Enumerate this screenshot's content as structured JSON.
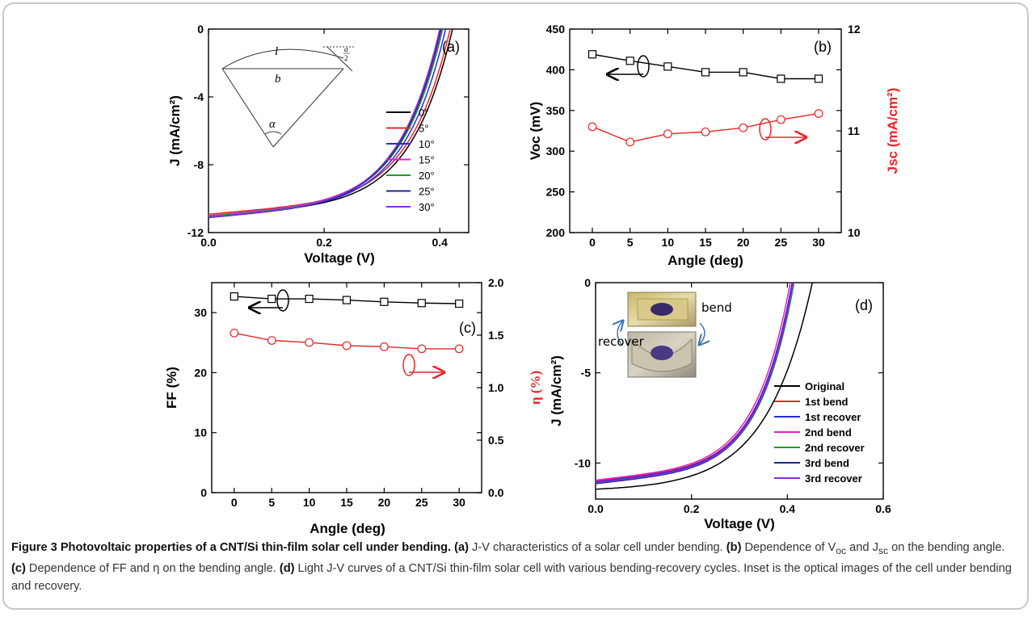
{
  "caption": {
    "label": "Figure 3",
    "title": "Photovoltaic properties of a CNT/Si thin-film solar cell under bending.",
    "a_tag": "(a)",
    "a_text": " J-V characteristics of a solar cell under bending. ",
    "b_tag": "(b)",
    "b_text": " Dependence of V",
    "b_sub1": "oc",
    "b_mid": " and J",
    "b_sub2": "sc",
    "b_end": " on the bending angle. ",
    "c_tag": "(c)",
    "c_text": " Dependence of FF and η on the bending angle. ",
    "d_tag": "(d)",
    "d_text": " Light J-V curves of a CNT/Si thin-film solar cell with various bending-recovery cycles. Inset is the optical images of the cell under bending and recovery."
  },
  "inset": {
    "l": "l",
    "b": "b",
    "alpha": "α",
    "half_alpha_num": "α",
    "half_alpha_den": "2",
    "bend": "bend",
    "recover": "recover"
  },
  "chart_data": [
    {
      "panel": "(a)",
      "type": "line",
      "xlabel": "Voltage (V)",
      "ylabel": "J (mA/cm²)",
      "xlim": [
        0.0,
        0.45
      ],
      "ylim": [
        -12,
        0
      ],
      "xticks": [
        "0.0",
        "0.2",
        "0.4"
      ],
      "yticks": [
        "0",
        "-4",
        "-8",
        "-12"
      ],
      "legend_position": "right",
      "series": [
        {
          "name": "0°",
          "color": "#000000",
          "jsc": -11.05,
          "voc": 0.422
        },
        {
          "name": "5°",
          "color": "#e8262a",
          "jsc": -10.92,
          "voc": 0.418
        },
        {
          "name": "10°",
          "color": "#2a2ad8",
          "jsc": -11.08,
          "voc": 0.41
        },
        {
          "name": "15°",
          "color": "#e020d0",
          "jsc": -11.0,
          "voc": 0.404
        },
        {
          "name": "20°",
          "color": "#1f9a2b",
          "jsc": -11.05,
          "voc": 0.405
        },
        {
          "name": "25°",
          "color": "#1e2a8c",
          "jsc": -11.12,
          "voc": 0.402
        },
        {
          "name": "30°",
          "color": "#8a2be2",
          "jsc": -11.1,
          "voc": 0.4
        }
      ]
    },
    {
      "panel": "(b)",
      "type": "line",
      "xlabel": "Angle (deg)",
      "ylabel": "Voc (mV)",
      "ylabel2": "Jsc (mA/cm²)",
      "x": [
        0,
        5,
        10,
        15,
        20,
        25,
        30
      ],
      "xticks": [
        "0",
        "5",
        "10",
        "15",
        "20",
        "25",
        "30"
      ],
      "ylim": [
        200,
        450
      ],
      "yticks": [
        "200",
        "250",
        "300",
        "350",
        "400",
        "450"
      ],
      "ylim2": [
        10,
        12
      ],
      "yticks2": [
        "10",
        "11",
        "12"
      ],
      "series": [
        {
          "name": "Voc",
          "axis": "left",
          "color": "#000000",
          "marker": "square",
          "values": [
            419,
            411,
            404,
            397,
            397,
            389,
            389
          ]
        },
        {
          "name": "Jsc",
          "axis": "right",
          "color": "#e8262a",
          "marker": "circle",
          "values": [
            11.04,
            10.89,
            10.97,
            10.99,
            11.03,
            11.11,
            11.17
          ]
        }
      ]
    },
    {
      "panel": "(c)",
      "type": "line",
      "xlabel": "Angle (deg)",
      "ylabel": "FF (%)",
      "ylabel2": "η (%)",
      "x": [
        0,
        5,
        10,
        15,
        20,
        25,
        30
      ],
      "xticks": [
        "0",
        "5",
        "10",
        "15",
        "20",
        "25",
        "30"
      ],
      "ylim": [
        0,
        35
      ],
      "yticks": [
        "0",
        "10",
        "20",
        "30"
      ],
      "ylim2": [
        0.0,
        2.0
      ],
      "yticks2": [
        "0.0",
        "0.5",
        "1.0",
        "1.5",
        "2.0"
      ],
      "series": [
        {
          "name": "FF",
          "axis": "left",
          "color": "#000000",
          "marker": "square",
          "values": [
            32.7,
            32.3,
            32.3,
            32.1,
            31.8,
            31.6,
            31.5
          ]
        },
        {
          "name": "η",
          "axis": "right",
          "color": "#e8262a",
          "marker": "circle",
          "values": [
            1.52,
            1.45,
            1.43,
            1.4,
            1.39,
            1.37,
            1.37
          ]
        }
      ]
    },
    {
      "panel": "(d)",
      "type": "line",
      "xlabel": "Voltage (V)",
      "ylabel": "J (mA/cm²)",
      "xlim": [
        0.0,
        0.6
      ],
      "ylim": [
        -12,
        0
      ],
      "xticks": [
        "0.0",
        "0.2",
        "0.4",
        "0.6"
      ],
      "yticks": [
        "0",
        "-5",
        "-10"
      ],
      "legend_position": "bottom-right",
      "series": [
        {
          "name": "Original",
          "color": "#000000",
          "jsc": -11.45,
          "voc": 0.452
        },
        {
          "name": "1st bend",
          "color": "#e8262a",
          "jsc": -11.0,
          "voc": 0.41
        },
        {
          "name": "1st recover",
          "color": "#2a2ad8",
          "jsc": -11.05,
          "voc": 0.41
        },
        {
          "name": "2nd bend",
          "color": "#e020d0",
          "jsc": -10.95,
          "voc": 0.406
        },
        {
          "name": "2nd recover",
          "color": "#1f9a2b",
          "jsc": -11.1,
          "voc": 0.414
        },
        {
          "name": "3rd bend",
          "color": "#1e2a8c",
          "jsc": -11.15,
          "voc": 0.412
        },
        {
          "name": "3rd recover",
          "color": "#8a2be2",
          "jsc": -11.1,
          "voc": 0.412
        }
      ]
    }
  ]
}
